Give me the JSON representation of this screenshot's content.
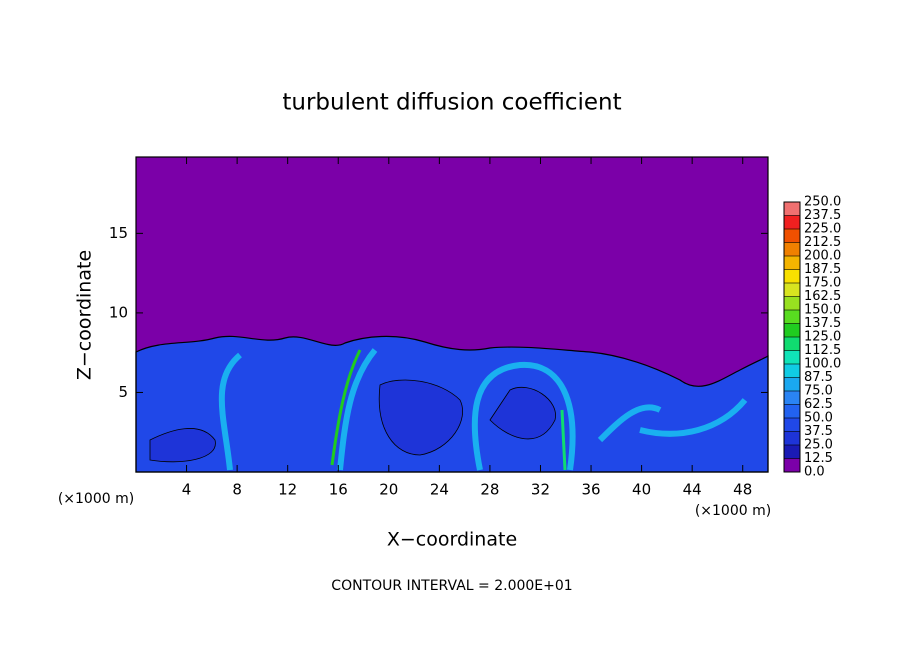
{
  "chart_data": {
    "type": "contour",
    "title": "turbulent diffusion coefficient",
    "x_label": "X−coordinate",
    "y_label": "Z−coordinate",
    "x_unit_label": "(×1000 m)",
    "y_unit_label": "(×1000 m)",
    "annotation": "CONTOUR INTERVAL = 2.000E+01",
    "xlim": [
      0,
      50
    ],
    "ylim": [
      0,
      19.8
    ],
    "xticks": [
      4,
      8,
      12,
      16,
      20,
      24,
      28,
      32,
      36,
      40,
      44,
      48
    ],
    "yticks": [
      5,
      10,
      15
    ],
    "background_color": "#7b00a8",
    "colorbar": {
      "ticks": [
        {
          "value": 0,
          "label": "0.0"
        },
        12.5,
        {
          "value": 25,
          "label": "25.0"
        },
        37.5,
        {
          "value": 50,
          "label": "50.0"
        },
        62.5,
        {
          "value": 75,
          "label": "75.0"
        },
        87.5,
        {
          "value": 100,
          "label": "100.0"
        },
        112.5,
        {
          "value": 125,
          "label": "125.0"
        },
        137.5,
        {
          "value": 150,
          "label": "150.0"
        },
        162.5,
        {
          "value": 175,
          "label": "175.0"
        },
        187.5,
        {
          "value": 200,
          "label": "200.0"
        },
        212.5,
        {
          "value": 225,
          "label": "225.0"
        },
        237.5,
        {
          "value": 250,
          "label": "250.0"
        }
      ],
      "colors": [
        "#7b00a8",
        "#1a1ab4",
        "#1e34d8",
        "#2048e8",
        "#2262f0",
        "#2a84f4",
        "#1aa8f0",
        "#10cce4",
        "#10e4b8",
        "#10dc70",
        "#20cc20",
        "#58dc20",
        "#98e020",
        "#d8e420",
        "#f8e000",
        "#f4b400",
        "#f08000",
        "#f05000",
        "#f02020",
        "#f07070"
      ]
    }
  }
}
